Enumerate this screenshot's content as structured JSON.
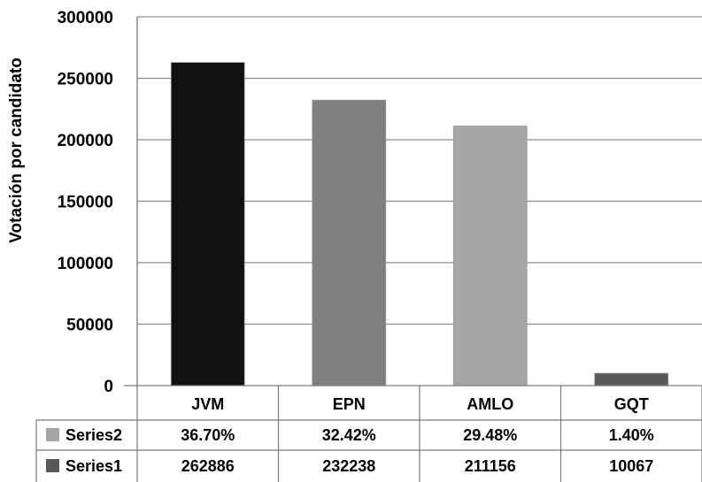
{
  "chart_data": {
    "type": "bar",
    "ylabel": "Votación por candidato",
    "ylim": [
      0,
      300000
    ],
    "yticks": [
      0,
      50000,
      100000,
      150000,
      200000,
      250000,
      300000
    ],
    "ytick_labels": [
      "0",
      "50000",
      "100000",
      "150000",
      "200000",
      "250000",
      "300000"
    ],
    "grid": true,
    "categories": [
      "JVM",
      "EPN",
      "AMLO",
      "GQT"
    ],
    "bar_colors": [
      "#111111",
      "#7f7f7f",
      "#a6a6a6",
      "#595959"
    ],
    "series": [
      {
        "name": "Series1",
        "values": [
          262886,
          232238,
          211156,
          10067
        ],
        "labels": [
          "262886",
          "232238",
          "211156",
          "10067"
        ],
        "color": "#595959"
      },
      {
        "name": "Series2",
        "values": [
          36.7,
          32.42,
          29.48,
          1.4
        ],
        "labels": [
          "36.70%",
          "32.42%",
          "29.48%",
          "1.40%"
        ],
        "color": "#a6a6a6"
      }
    ],
    "data_table": {
      "row_order": [
        "Series2",
        "Series1"
      ]
    }
  }
}
